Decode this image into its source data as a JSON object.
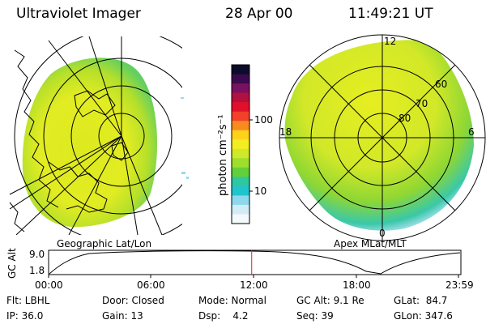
{
  "header": {
    "title": "Ultraviolet Imager",
    "date": "28 Apr 00",
    "time": "11:49:21 UT"
  },
  "geo_panel": {
    "caption": "Geographic Lat/Lon"
  },
  "polar_panel": {
    "caption": "Apex MLat/MLT",
    "mlt_labels": [
      "12",
      "18",
      "6",
      "0"
    ],
    "mlat_labels": [
      "60",
      "70",
      "80"
    ]
  },
  "colorbar": {
    "unit_label": "photon cm⁻²s⁻¹",
    "ticks": [
      "100",
      "10"
    ],
    "colors": [
      "#0b0b2a",
      "#3a0a4e",
      "#7a1060",
      "#b2103e",
      "#e0102a",
      "#f2402a",
      "#f88a20",
      "#ffd21a",
      "#f4ee20",
      "#cfe92a",
      "#9ede2c",
      "#62d03a",
      "#2ec7a0",
      "#22c4cc",
      "#8ed8ee",
      "#d2ecf6",
      "#f4f9fc"
    ]
  },
  "altitude_plot": {
    "ylabel": "GC Alt",
    "yticks": [
      "9.0",
      "1.8"
    ],
    "xticks": [
      "00:00",
      "06:00",
      "12:00",
      "18:00",
      "23:59"
    ],
    "marker_time": "11:49:21",
    "marker_color": "#dd2222"
  },
  "status": {
    "flt": "Flt: LBHL",
    "ip": "IP: 36.0",
    "door": "Door: Closed",
    "gain": "Gain: 13",
    "mode": "Mode: Normal",
    "dsp": "Dsp:    4.2",
    "gcalt": "GC Alt: 9.1 Re",
    "seq": "Seq: 39",
    "glat": "GLat:  84.7",
    "glon": "GLon: 347.6"
  }
}
